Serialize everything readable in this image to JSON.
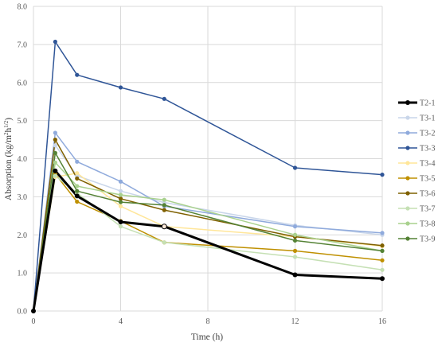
{
  "chart_data": {
    "type": "line",
    "title": "",
    "xlabel": "Time (h)",
    "ylabel": "Absorption (kg/m²h^1/2)",
    "ylabel_main": "Absorption (kg/m",
    "ylabel_sup1": "2",
    "ylabel_mid": "h",
    "ylabel_sup2": "1/2",
    "ylabel_end": ")",
    "xlim": [
      0,
      16
    ],
    "ylim": [
      0,
      8
    ],
    "xticks": [
      0,
      4,
      8,
      12,
      16
    ],
    "xtick_labels": [
      "0",
      "4",
      "8",
      "12",
      "16"
    ],
    "yticks": [
      0,
      1,
      2,
      3,
      4,
      5,
      6,
      7,
      8
    ],
    "ytick_labels": [
      "0.0",
      "1.0",
      "2.0",
      "3.0",
      "4.0",
      "5.0",
      "6.0",
      "7.0",
      "8.0"
    ],
    "grid": true,
    "legend_position": "right",
    "series": [
      {
        "name": "T2-1",
        "color": "#000000",
        "x": [
          0,
          1,
          2,
          4,
          6,
          12,
          16
        ],
        "values": [
          0,
          3.68,
          3.02,
          2.34,
          2.22,
          0.95,
          0.85
        ]
      },
      {
        "name": "T3-1",
        "color": "#c9d6ea",
        "x": [
          0,
          1,
          2,
          4,
          6,
          12,
          16
        ],
        "values": [
          0,
          4.35,
          3.55,
          3.15,
          2.85,
          2.25,
          2.0
        ]
      },
      {
        "name": "T3-2",
        "color": "#8faadc",
        "x": [
          0,
          1,
          2,
          4,
          6,
          12,
          16
        ],
        "values": [
          0,
          4.68,
          3.92,
          3.4,
          2.75,
          2.22,
          2.05
        ]
      },
      {
        "name": "T3-3",
        "color": "#2f5597",
        "x": [
          0,
          1,
          2,
          4,
          6,
          12,
          16
        ],
        "values": [
          0,
          7.07,
          6.2,
          5.87,
          5.57,
          3.76,
          3.58
        ]
      },
      {
        "name": "T3-4",
        "color": "#ffe699",
        "x": [
          0,
          1,
          2,
          4,
          6,
          12,
          16
        ],
        "values": [
          0,
          3.52,
          3.62,
          2.75,
          2.22,
          1.95,
          1.7
        ]
      },
      {
        "name": "T3-5",
        "color": "#bf9000",
        "x": [
          0,
          1,
          2,
          4,
          6,
          12,
          16
        ],
        "values": [
          0,
          3.6,
          2.87,
          2.36,
          1.8,
          1.58,
          1.33
        ]
      },
      {
        "name": "T3-6",
        "color": "#7f6000",
        "x": [
          0,
          1,
          2,
          4,
          6,
          12,
          16
        ],
        "values": [
          0,
          4.5,
          3.48,
          2.95,
          2.65,
          1.95,
          1.72
        ]
      },
      {
        "name": "T3-7",
        "color": "#c5e0b4",
        "x": [
          0,
          1,
          2,
          4,
          6,
          12,
          16
        ],
        "values": [
          0,
          3.55,
          3.1,
          2.22,
          1.8,
          1.42,
          1.08
        ]
      },
      {
        "name": "T3-8",
        "color": "#a9d18e",
        "x": [
          0,
          1,
          2,
          4,
          6,
          12,
          16
        ],
        "values": [
          0,
          3.9,
          3.28,
          3.05,
          2.92,
          2.0,
          1.58
        ]
      },
      {
        "name": "T3-9",
        "color": "#548235",
        "x": [
          0,
          1,
          2,
          4,
          6,
          12,
          16
        ],
        "values": [
          0,
          4.15,
          3.15,
          2.86,
          2.78,
          1.85,
          1.58
        ]
      }
    ]
  }
}
